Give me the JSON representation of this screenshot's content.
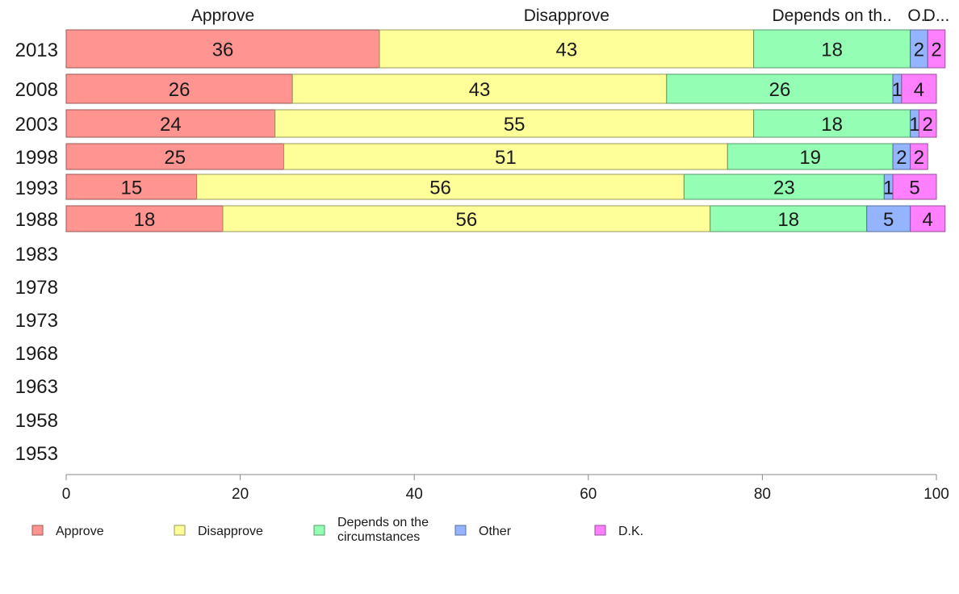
{
  "chart_data": {
    "type": "bar",
    "orientation": "horizontal",
    "stacked": true,
    "title": "",
    "xlabel": "",
    "ylabel": "",
    "xlim": [
      0,
      100
    ],
    "x_ticks": [
      "0",
      "20",
      "40",
      "60",
      "80",
      "100"
    ],
    "grid": false,
    "legend_position": "bottom",
    "categories": [
      "2013",
      "2008",
      "2003",
      "1998",
      "1993",
      "1988",
      "1983",
      "1978",
      "1973",
      "1968",
      "1963",
      "1958",
      "1953"
    ],
    "column_headers": [
      "Approve",
      "Disapprove",
      "Depends on th..",
      "O..",
      "D..."
    ],
    "series": [
      {
        "name": "Approve",
        "legend_label": "Approve",
        "color": "#ff9490",
        "values": [
          36,
          26,
          24,
          25,
          15,
          18,
          null,
          null,
          null,
          null,
          null,
          null,
          null
        ]
      },
      {
        "name": "Disapprove",
        "legend_label": "Disapprove",
        "color": "#ffff99",
        "values": [
          43,
          43,
          55,
          51,
          56,
          56,
          null,
          null,
          null,
          null,
          null,
          null,
          null
        ]
      },
      {
        "name": "Depends on the circumstances",
        "legend_label": "Depends on the\ncircumstances",
        "color": "#94ffb4",
        "values": [
          18,
          26,
          18,
          19,
          23,
          18,
          null,
          null,
          null,
          null,
          null,
          null,
          null
        ]
      },
      {
        "name": "Other",
        "legend_label": "Other",
        "color": "#94b4ff",
        "values": [
          2,
          1,
          1,
          2,
          1,
          5,
          null,
          null,
          null,
          null,
          null,
          null,
          null
        ]
      },
      {
        "name": "D.K.",
        "legend_label": "D.K.",
        "color": "#ff80ff",
        "values": [
          2,
          4,
          2,
          2,
          5,
          4,
          null,
          null,
          null,
          null,
          null,
          null,
          null
        ]
      }
    ]
  }
}
